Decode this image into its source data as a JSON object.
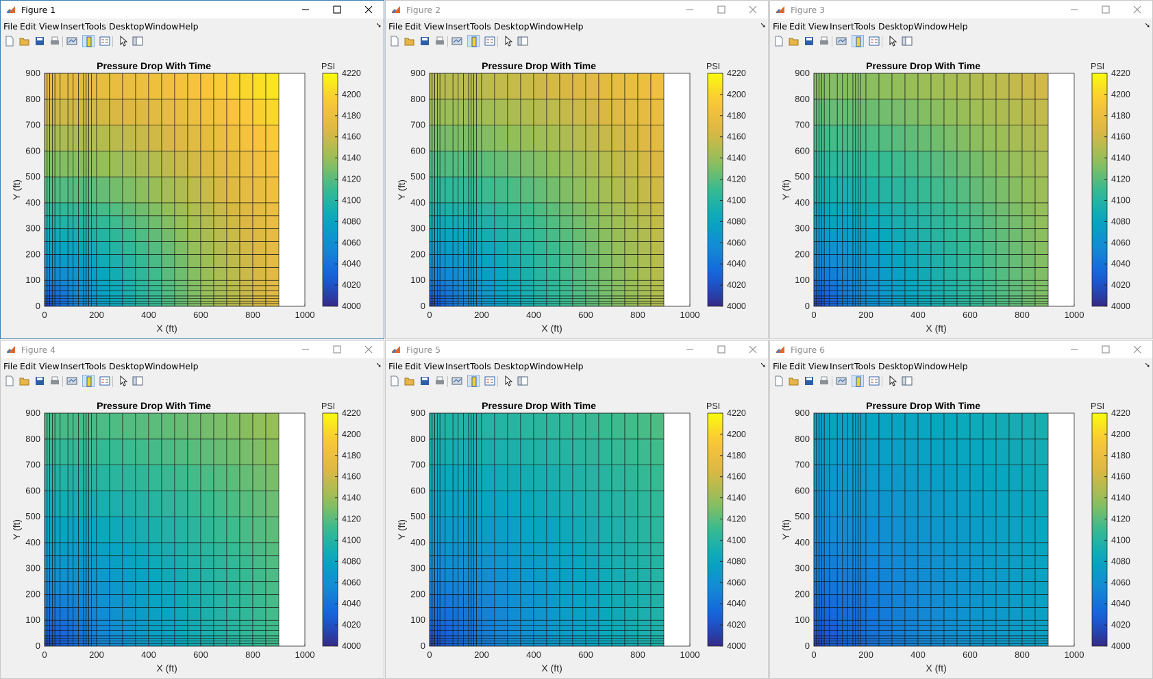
{
  "menu_items": [
    "File",
    "Edit",
    "View",
    "Insert",
    "Tools",
    "Desktop",
    "Window",
    "Help"
  ],
  "toolbar_icons": [
    "new-figure-icon",
    "open-file-icon",
    "save-icon",
    "print-icon",
    "link-plot-icon",
    "insert-colorbar-icon",
    "insert-legend-icon",
    "select-arrow-icon",
    "property-inspector-icon"
  ],
  "figures": [
    {
      "title": "Figure 1",
      "active": true,
      "chart_data": {
        "type": "heatmap",
        "title": "Pressure Drop With Time",
        "xlabel": "X (ft)",
        "ylabel": "Y (ft)",
        "xlim": [
          0,
          1000
        ],
        "ylim": [
          0,
          900
        ],
        "xticks": [
          0,
          200,
          400,
          600,
          800,
          1000
        ],
        "yticks": [
          0,
          100,
          200,
          300,
          400,
          500,
          600,
          700,
          800,
          900
        ],
        "colorbar": {
          "label": "PSI",
          "range": [
            4000,
            4220
          ],
          "ticks": [
            4000,
            4020,
            4040,
            4060,
            4080,
            4100,
            4120,
            4140,
            4160,
            4180,
            4200,
            4220
          ]
        },
        "min": 4000,
        "max": 4215
      }
    },
    {
      "title": "Figure 2",
      "active": false,
      "chart_data": {
        "type": "heatmap",
        "title": "Pressure Drop With Time",
        "xlabel": "X (ft)",
        "ylabel": "Y (ft)",
        "xlim": [
          0,
          1000
        ],
        "ylim": [
          0,
          900
        ],
        "xticks": [
          0,
          200,
          400,
          600,
          800,
          1000
        ],
        "yticks": [
          0,
          100,
          200,
          300,
          400,
          500,
          600,
          700,
          800,
          900
        ],
        "colorbar": {
          "label": "PSI",
          "range": [
            4000,
            4220
          ],
          "ticks": [
            4000,
            4020,
            4040,
            4060,
            4080,
            4100,
            4120,
            4140,
            4160,
            4180,
            4200,
            4220
          ]
        },
        "min": 4005,
        "max": 4188
      }
    },
    {
      "title": "Figure 3",
      "active": false,
      "chart_data": {
        "type": "heatmap",
        "title": "Pressure Drop With Time",
        "xlabel": "X (ft)",
        "ylabel": "Y (ft)",
        "xlim": [
          0,
          1000
        ],
        "ylim": [
          0,
          900
        ],
        "xticks": [
          0,
          200,
          400,
          600,
          800,
          1000
        ],
        "yticks": [
          0,
          100,
          200,
          300,
          400,
          500,
          600,
          700,
          800,
          900
        ],
        "colorbar": {
          "label": "PSI",
          "range": [
            4000,
            4220
          ],
          "ticks": [
            4000,
            4020,
            4040,
            4060,
            4080,
            4100,
            4120,
            4140,
            4160,
            4180,
            4200,
            4220
          ]
        },
        "min": 4005,
        "max": 4165
      }
    },
    {
      "title": "Figure 4",
      "active": false,
      "chart_data": {
        "type": "heatmap",
        "title": "Pressure Drop With Time",
        "xlabel": "X (ft)",
        "ylabel": "Y (ft)",
        "xlim": [
          0,
          1000
        ],
        "ylim": [
          0,
          900
        ],
        "xticks": [
          0,
          200,
          400,
          600,
          800,
          1000
        ],
        "yticks": [
          0,
          100,
          200,
          300,
          400,
          500,
          600,
          700,
          800,
          900
        ],
        "colorbar": {
          "label": "PSI",
          "range": [
            4000,
            4220
          ],
          "ticks": [
            4000,
            4020,
            4040,
            4060,
            4080,
            4100,
            4120,
            4140,
            4160,
            4180,
            4200,
            4220
          ]
        },
        "min": 4005,
        "max": 4142
      }
    },
    {
      "title": "Figure 5",
      "active": false,
      "chart_data": {
        "type": "heatmap",
        "title": "Pressure Drop With Time",
        "xlabel": "X (ft)",
        "ylabel": "Y (ft)",
        "xlim": [
          0,
          1000
        ],
        "ylim": [
          0,
          900
        ],
        "xticks": [
          0,
          200,
          400,
          600,
          800,
          1000
        ],
        "yticks": [
          0,
          100,
          200,
          300,
          400,
          500,
          600,
          700,
          800,
          900
        ],
        "colorbar": {
          "label": "PSI",
          "range": [
            4000,
            4220
          ],
          "ticks": [
            4000,
            4020,
            4040,
            4060,
            4080,
            4100,
            4120,
            4140,
            4160,
            4180,
            4200,
            4220
          ]
        },
        "min": 4008,
        "max": 4120
      }
    },
    {
      "title": "Figure 6",
      "active": false,
      "chart_data": {
        "type": "heatmap",
        "title": "Pressure Drop With Time",
        "xlabel": "X (ft)",
        "ylabel": "Y (ft)",
        "xlim": [
          0,
          1000
        ],
        "ylim": [
          0,
          900
        ],
        "xticks": [
          0,
          200,
          400,
          600,
          800,
          1000
        ],
        "yticks": [
          0,
          100,
          200,
          300,
          400,
          500,
          600,
          700,
          800,
          900
        ],
        "colorbar": {
          "label": "PSI",
          "range": [
            4000,
            4220
          ],
          "ticks": [
            4000,
            4020,
            4040,
            4060,
            4080,
            4100,
            4120,
            4140,
            4160,
            4180,
            4200,
            4220
          ]
        },
        "min": 4010,
        "max": 4095
      }
    }
  ]
}
